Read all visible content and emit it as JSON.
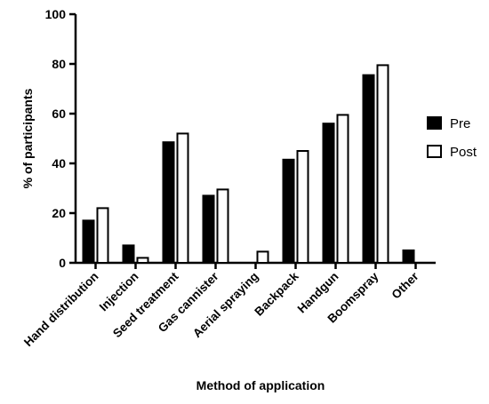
{
  "chart_data": {
    "type": "bar",
    "categories": [
      "Hand distribution",
      "Injection",
      "Seed treatment",
      "Gas cannister",
      "Aerial spraying",
      "Backpack",
      "Handgun",
      "Boomspray",
      "Other"
    ],
    "series": [
      {
        "name": "Pre",
        "values": [
          17,
          7,
          48.5,
          27,
          0,
          41.5,
          56,
          75.5,
          5
        ],
        "color": "#000000"
      },
      {
        "name": "Post",
        "values": [
          22,
          2,
          52,
          29.5,
          4.5,
          45,
          59.5,
          79.5,
          0
        ],
        "color": "#ffffff"
      }
    ],
    "xlabel": "Method of application",
    "ylabel": "% of participants",
    "ylim": [
      0,
      100
    ],
    "yticks": [
      0,
      20,
      40,
      60,
      80,
      100
    ],
    "grid": false,
    "legend_position": "right"
  }
}
